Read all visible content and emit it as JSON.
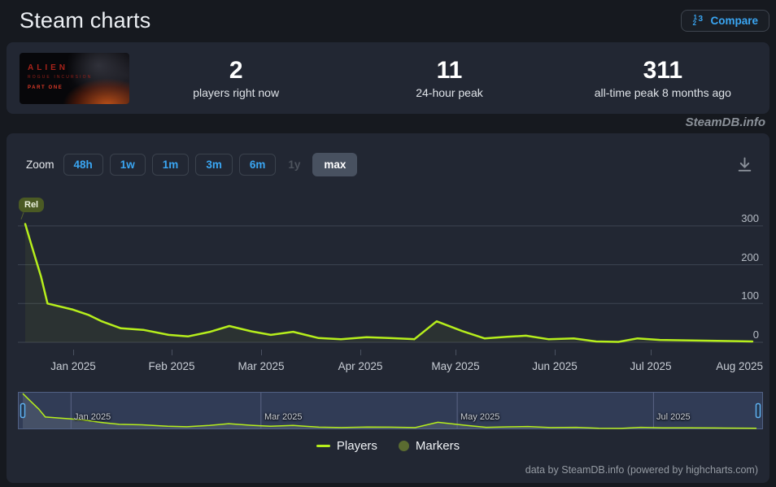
{
  "header": {
    "title": "Steam charts",
    "compare_label": "Compare"
  },
  "app": {
    "thumbnail": {
      "line1": "ALIEN",
      "line2": "ROGUE INCURSION",
      "line3": "PART ONE"
    },
    "stats": [
      {
        "value": "2",
        "label": "players right now"
      },
      {
        "value": "11",
        "label": "24-hour peak"
      },
      {
        "value": "311",
        "label": "all-time peak 8 months ago"
      }
    ]
  },
  "watermark": "SteamDB.info",
  "toolbar": {
    "zoom_label": "Zoom",
    "buttons": [
      {
        "label": "48h",
        "state": "enabled"
      },
      {
        "label": "1w",
        "state": "enabled"
      },
      {
        "label": "1m",
        "state": "enabled"
      },
      {
        "label": "3m",
        "state": "enabled"
      },
      {
        "label": "6m",
        "state": "enabled"
      },
      {
        "label": "1y",
        "state": "disabled"
      },
      {
        "label": "max",
        "state": "selected"
      }
    ]
  },
  "colors": {
    "page_bg": "#16191f",
    "panel_bg": "#222733",
    "accent_blue": "#3aa6f3",
    "line": "#b6ee1c",
    "marker_olive": "#5a6b30",
    "gridline": "#3d4452"
  },
  "chart_data": {
    "type": "line",
    "title": "",
    "xlabel": "",
    "ylabel": "",
    "ylim": [
      0,
      390
    ],
    "grid": true,
    "legend_position": "bottom-center",
    "y_ticks": [
      0,
      100,
      200,
      300
    ],
    "x_ticks": [
      {
        "label": "Jan 2025",
        "date": "2025-01-01"
      },
      {
        "label": "Feb 2025",
        "date": "2025-02-01"
      },
      {
        "label": "Mar 2025",
        "date": "2025-03-01"
      },
      {
        "label": "Apr 2025",
        "date": "2025-04-01"
      },
      {
        "label": "May 2025",
        "date": "2025-05-01"
      },
      {
        "label": "Jun 2025",
        "date": "2025-06-01"
      },
      {
        "label": "Jul 2025",
        "date": "2025-07-01"
      },
      {
        "label": "Aug 2025",
        "date": "2025-08-01"
      }
    ],
    "navigator_ticks": [
      {
        "label": "Jan 2025",
        "date": "2025-01-01"
      },
      {
        "label": "Mar 2025",
        "date": "2025-03-01"
      },
      {
        "label": "May 2025",
        "date": "2025-05-01"
      },
      {
        "label": "Jul 2025",
        "date": "2025-07-01"
      }
    ],
    "release_marker": {
      "label": "Rel",
      "date": "2024-12-17"
    },
    "series": [
      {
        "name": "Players",
        "color": "#b6ee1c",
        "points": [
          [
            "2024-12-17",
            305
          ],
          [
            "2024-12-19",
            250
          ],
          [
            "2024-12-22",
            168
          ],
          [
            "2024-12-24",
            100
          ],
          [
            "2025-01-01",
            84
          ],
          [
            "2025-01-06",
            70
          ],
          [
            "2025-01-10",
            54
          ],
          [
            "2025-01-16",
            36
          ],
          [
            "2025-01-23",
            32
          ],
          [
            "2025-01-31",
            19
          ],
          [
            "2025-02-06",
            15
          ],
          [
            "2025-02-13",
            27
          ],
          [
            "2025-02-19",
            42
          ],
          [
            "2025-02-26",
            28
          ],
          [
            "2025-03-04",
            19
          ],
          [
            "2025-03-11",
            27
          ],
          [
            "2025-03-19",
            11
          ],
          [
            "2025-03-26",
            8
          ],
          [
            "2025-04-03",
            13
          ],
          [
            "2025-04-10",
            11
          ],
          [
            "2025-04-18",
            8
          ],
          [
            "2025-04-25",
            54
          ],
          [
            "2025-05-03",
            29
          ],
          [
            "2025-05-10",
            10
          ],
          [
            "2025-05-17",
            14
          ],
          [
            "2025-05-23",
            17
          ],
          [
            "2025-05-30",
            8
          ],
          [
            "2025-06-07",
            10
          ],
          [
            "2025-06-14",
            2
          ],
          [
            "2025-06-21",
            1
          ],
          [
            "2025-06-27",
            10
          ],
          [
            "2025-07-04",
            6
          ],
          [
            "2025-07-12",
            5
          ],
          [
            "2025-07-20",
            4
          ],
          [
            "2025-07-28",
            3
          ],
          [
            "2025-08-02",
            2
          ]
        ]
      }
    ]
  },
  "legend": {
    "items": [
      {
        "label": "Players",
        "marker": "line"
      },
      {
        "label": "Markers",
        "marker": "circle"
      }
    ]
  },
  "credits": "data by SteamDB.info (powered by highcharts.com)"
}
